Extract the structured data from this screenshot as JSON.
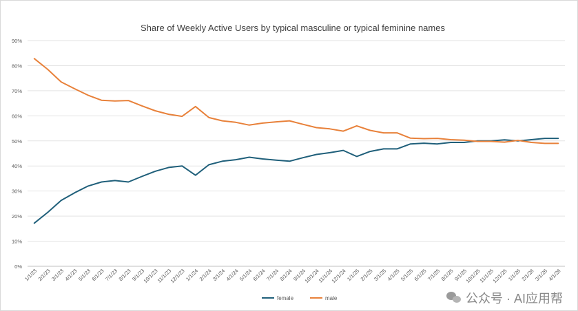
{
  "watermark": "公众号 · AI应用帮",
  "chart_data": {
    "type": "line",
    "title": "Share of Weekly Active Users by typical masculine or typical feminine names",
    "xlabel": "",
    "ylabel": "",
    "ylim": [
      0,
      90
    ],
    "yticks": [
      "0%",
      "10%",
      "20%",
      "30%",
      "40%",
      "50%",
      "60%",
      "70%",
      "80%",
      "90%"
    ],
    "grid": true,
    "legend_position": "bottom",
    "x": [
      "1/1/23",
      "2/1/23",
      "3/1/23",
      "4/1/23",
      "5/1/23",
      "6/1/23",
      "7/1/23",
      "8/1/23",
      "9/1/23",
      "10/1/23",
      "11/1/23",
      "12/1/23",
      "1/1/24",
      "2/1/24",
      "3/1/24",
      "4/1/24",
      "5/1/24",
      "6/1/24",
      "7/1/24",
      "8/1/24",
      "9/1/24",
      "10/1/24",
      "11/1/24",
      "12/1/24",
      "1/1/25",
      "2/1/25",
      "3/1/25",
      "4/1/25",
      "5/1/25",
      "6/1/25",
      "7/1/25",
      "8/1/25",
      "9/1/25",
      "10/1/25",
      "11/1/25",
      "12/1/25",
      "1/1/26",
      "2/1/26",
      "3/1/26",
      "4/1/26"
    ],
    "series": [
      {
        "name": "female",
        "color": "#1f5f7a",
        "values": [
          17.2,
          21.5,
          26.3,
          29.3,
          32.0,
          33.6,
          34.2,
          33.6,
          35.8,
          37.9,
          39.4,
          40.0,
          36.3,
          40.5,
          41.9,
          42.5,
          43.5,
          42.8,
          42.3,
          41.9,
          43.3,
          44.6,
          45.3,
          46.2,
          43.8,
          45.8,
          46.8,
          46.8,
          48.8,
          49.1,
          48.8,
          49.4,
          49.4,
          50.0,
          50.0,
          50.4,
          50.0,
          50.5,
          51.0,
          51.0
        ]
      },
      {
        "name": "male",
        "color": "#e8813a",
        "values": [
          82.8,
          78.5,
          73.5,
          70.8,
          68.2,
          66.2,
          65.9,
          66.1,
          64.0,
          62.0,
          60.6,
          59.8,
          63.7,
          59.3,
          58.0,
          57.4,
          56.3,
          57.1,
          57.6,
          58.0,
          56.6,
          55.3,
          54.8,
          53.9,
          56.0,
          54.2,
          53.2,
          53.2,
          51.1,
          50.9,
          51.0,
          50.5,
          50.3,
          49.8,
          49.8,
          49.5,
          50.2,
          49.4,
          49.0,
          49.0
        ]
      }
    ]
  }
}
